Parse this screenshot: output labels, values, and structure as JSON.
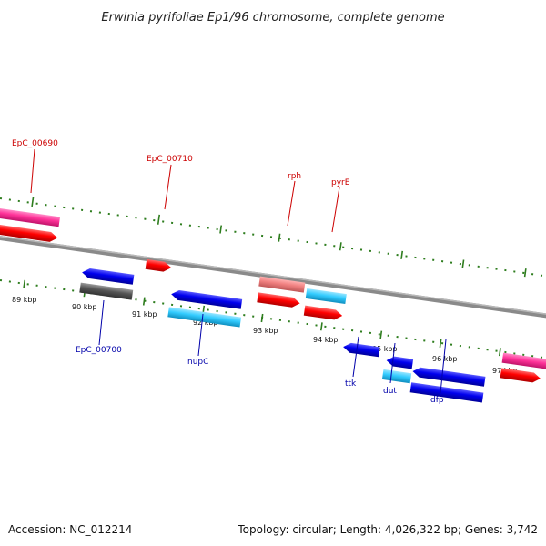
{
  "title": "Erwinia pyrifoliae Ep1/96 chromosome, complete genome",
  "accession": "Accession: NC_012214",
  "summary": "Topology: circular; Length: 4,026,322 bp; Genes: 3,742",
  "kbp_labels": [
    "89 kbp",
    "90 kbp",
    "91 kbp",
    "92 kbp",
    "93 kbp",
    "94 kbp",
    "95 kbp",
    "96 kbp",
    "97 kbp"
  ],
  "gene_labels": {
    "EpC_00690": "EpC_00690",
    "EpC_00710": "EpC_00710",
    "rph": "rph",
    "pyrE": "pyrE",
    "EpC_00700": "EpC_00700",
    "nupC": "nupC",
    "ttk": "ttk",
    "dut": "dut",
    "dfp": "dfp"
  },
  "colors": {
    "forward_label": "#cc0000",
    "reverse_label": "#0000aa",
    "red": "#ff0000",
    "magenta": "#ff3399",
    "salmon": "#f08080",
    "cyan": "#33ccff",
    "blue": "#0000ee",
    "dark_gray": "#555555",
    "tick_green": "#2e7d1e",
    "backbone": "#888888"
  }
}
